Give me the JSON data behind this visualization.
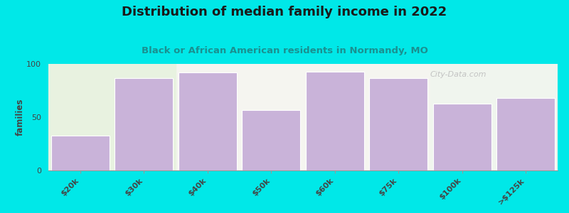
{
  "title": "Distribution of median family income in 2022",
  "subtitle": "Black or African American residents in Normandy, MO",
  "categories": [
    "$20k",
    "$30k",
    "$40k",
    "$50k",
    "$60k",
    "$75k",
    "$100k",
    ">$125k"
  ],
  "values": [
    33,
    87,
    92,
    57,
    93,
    87,
    63,
    68
  ],
  "bar_color": "#c9b3d9",
  "green_bg_color": "#e8f2e0",
  "right_bg_color": "#f0f5ee",
  "ylim": [
    0,
    100
  ],
  "ylabel": "families",
  "background_color": "#00e8e8",
  "plot_bg_color": "#f5f5f0",
  "title_fontsize": 13,
  "subtitle_fontsize": 9.5,
  "watermark": "City-Data.com"
}
